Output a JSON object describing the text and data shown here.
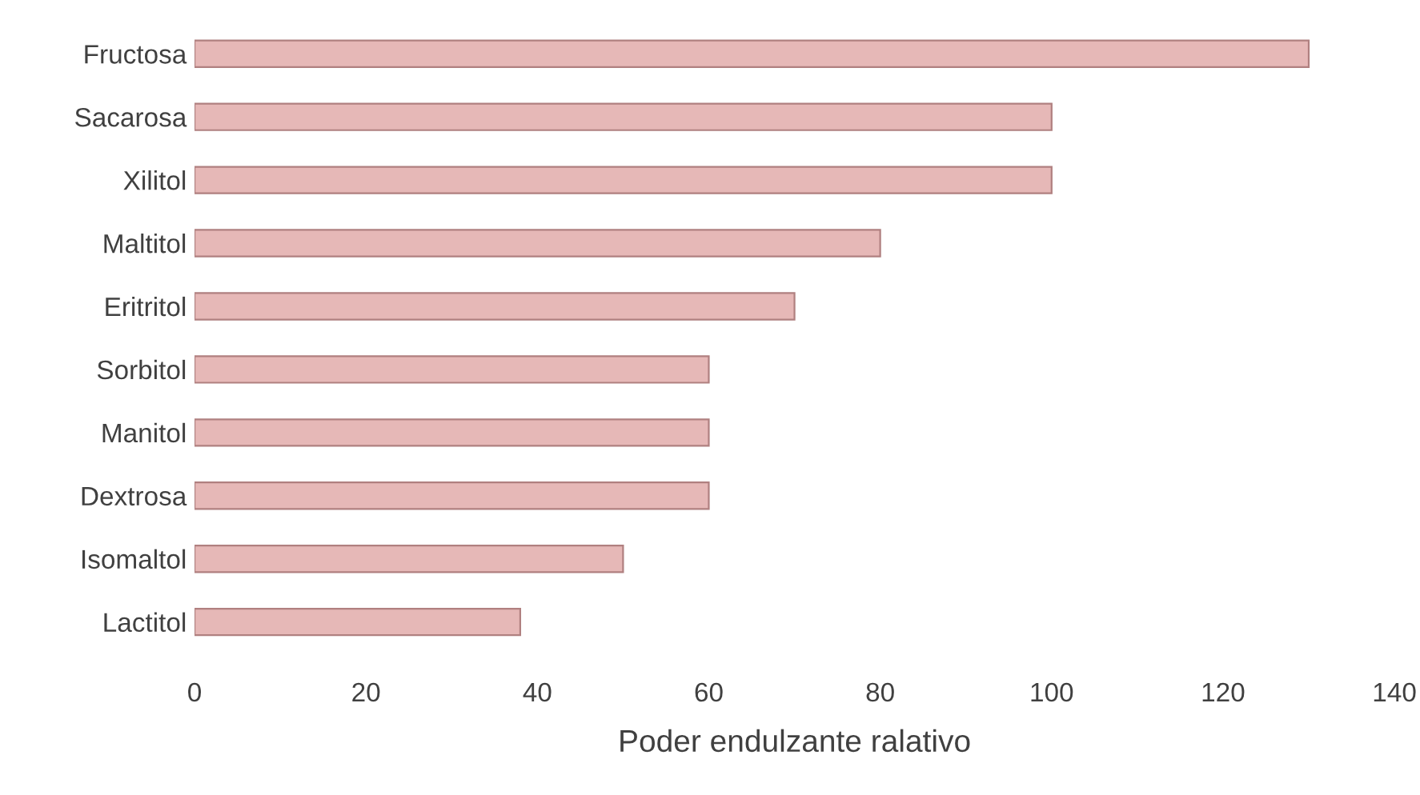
{
  "chart_data": {
    "type": "bar",
    "orientation": "horizontal",
    "xlabel": "Poder endulzante ralativo",
    "categories": [
      "Fructosa",
      "Sacarosa",
      "Xilitol",
      "Maltitol",
      "Eritritol",
      "Sorbitol",
      "Manitol",
      "Dextrosa",
      "Isomaltol",
      "Lactitol"
    ],
    "values": [
      130,
      100,
      100,
      80,
      70,
      60,
      60,
      60,
      50,
      38
    ],
    "color": "#e6b8b7",
    "xlim": [
      0,
      140
    ],
    "xticks": [
      0,
      20,
      40,
      60,
      80,
      100,
      120,
      140
    ],
    "grid": false
  }
}
